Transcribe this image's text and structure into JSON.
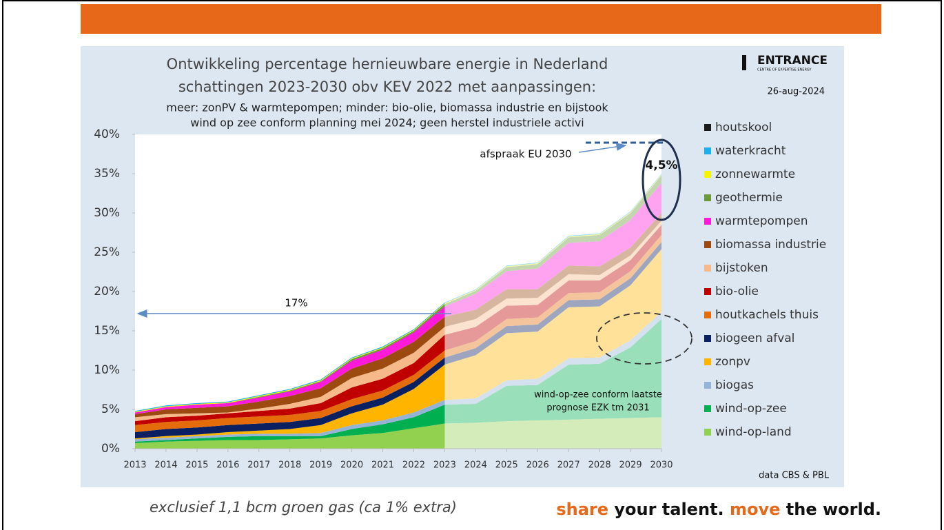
{
  "chart_data": {
    "type": "stacked_area",
    "title": [
      "Ontwikkeling percentage hernieuwbare energie in Nederland",
      "schattingen 2023-2030 obv KEV 2022 met aanpassingen:"
    ],
    "subtitle": [
      "meer: zonPV & warmtepompen; minder: bio-olie, biomassa industrie en bijstook",
      "wind op zee conform planning mei 2024; geen herstel industriele activi"
    ],
    "logo": "ENTRANCE",
    "logo_subtitle": "CENTRE OF EXPERTISE ENERGY",
    "date": "26-aug-2024",
    "source": "data CBS & PBL",
    "annotations": [
      "17%",
      "afspraak EU 2030",
      "4,5%",
      "wind-op-zee conform laatste",
      "prognose EZK tm 2031"
    ],
    "forecast_start": 2023,
    "x": [
      2013,
      2014,
      2015,
      2016,
      2017,
      2018,
      2019,
      2020,
      2021,
      2022,
      2023,
      2024,
      2025,
      2026,
      2027,
      2028,
      2029,
      2030
    ],
    "xlim": [
      2013,
      2030
    ],
    "xticks": [
      2013,
      2014,
      2015,
      2016,
      2017,
      2018,
      2019,
      2020,
      2021,
      2022,
      2023,
      2024,
      2025,
      2026,
      2027,
      2028,
      2029,
      2030
    ],
    "ylim": [
      0,
      40
    ],
    "yticks": [
      {
        "value": 0,
        "label": "0%"
      },
      {
        "value": 5,
        "label": "5%"
      },
      {
        "value": 10,
        "label": "10%"
      },
      {
        "value": 15,
        "label": "15%"
      },
      {
        "value": 20,
        "label": "20%"
      },
      {
        "value": 25,
        "label": "25%"
      },
      {
        "value": 30,
        "label": "30%"
      },
      {
        "value": 35,
        "label": "35%"
      },
      {
        "value": 40,
        "label": "40%"
      }
    ],
    "series": [
      {
        "name": "houtskool",
        "color": "#1a1a1a",
        "values": [
          0,
          0,
          0,
          0,
          0,
          0,
          0,
          0,
          0,
          0,
          0,
          0,
          0,
          0,
          0,
          0,
          0,
          0
        ]
      },
      {
        "name": "waterkracht",
        "color": "#1ab0e8",
        "values": [
          0.1,
          0.1,
          0.1,
          0.1,
          0.1,
          0.1,
          0.1,
          0.1,
          0.1,
          0.1,
          0.1,
          0.1,
          0.1,
          0.1,
          0.1,
          0.1,
          0.1,
          0.1
        ]
      },
      {
        "name": "zonnewarmte",
        "color": "#f5f500",
        "values": [
          0.1,
          0.1,
          0.1,
          0.1,
          0.1,
          0.1,
          0.1,
          0.1,
          0.1,
          0.1,
          0.1,
          0.1,
          0.1,
          0.1,
          0.1,
          0.1,
          0.1,
          0.1
        ]
      },
      {
        "name": "geothermie",
        "color": "#6a9a3a",
        "values": [
          0,
          0,
          0,
          0,
          0.1,
          0.1,
          0.1,
          0.2,
          0.2,
          0.2,
          0.3,
          0.4,
          0.5,
          0.6,
          0.7,
          0.8,
          0.9,
          1.0
        ]
      },
      {
        "name": "warmtepompen",
        "color": "#ff1ad9",
        "values": [
          0.2,
          0.3,
          0.4,
          0.4,
          0.5,
          0.6,
          0.8,
          1.0,
          1.1,
          1.2,
          1.3,
          2.0,
          2.3,
          2.6,
          2.9,
          3.2,
          3.5,
          3.8
        ]
      },
      {
        "name": "biomassa industrie",
        "color": "#9c4a10",
        "values": [
          0.4,
          0.6,
          0.7,
          0.8,
          0.9,
          1.0,
          1.1,
          1.2,
          1.3,
          1.4,
          1.3,
          1.2,
          1.2,
          1.1,
          1.1,
          1.1,
          1.0,
          1.0
        ]
      },
      {
        "name": "bijstoken",
        "color": "#f6b98a",
        "values": [
          0.5,
          0.4,
          0.3,
          0.1,
          0.3,
          0.6,
          0.8,
          1.2,
          1.3,
          1.3,
          1.0,
          1.0,
          0.9,
          0.9,
          0.8,
          0.7,
          0.6,
          0.5
        ]
      },
      {
        "name": "bio-olie",
        "color": "#c00000",
        "values": [
          0.5,
          0.6,
          0.6,
          0.6,
          0.7,
          0.8,
          1.0,
          1.5,
          1.5,
          1.5,
          2.0,
          1.8,
          1.7,
          1.6,
          1.6,
          1.5,
          1.4,
          1.3
        ]
      },
      {
        "name": "houtkachels thuis",
        "color": "#e46c0a",
        "values": [
          0.9,
          0.9,
          0.9,
          0.9,
          0.9,
          0.9,
          0.9,
          0.9,
          0.9,
          0.9,
          0.9,
          0.9,
          0.9,
          0.9,
          0.9,
          0.9,
          0.9,
          0.9
        ]
      },
      {
        "name": "biogeen afval",
        "color": "#0b2060",
        "values": [
          0.8,
          0.9,
          0.9,
          0.9,
          0.9,
          0.9,
          0.9,
          0.9,
          0.9,
          0.9,
          0.9,
          0.9,
          0.9,
          0.9,
          0.9,
          0.9,
          0.9,
          0.9
        ]
      },
      {
        "name": "zonpv",
        "color": "#ffb400",
        "values": [
          0.1,
          0.2,
          0.2,
          0.3,
          0.4,
          0.6,
          1.0,
          1.5,
          2.0,
          3.0,
          4.5,
          5.5,
          6.0,
          6.0,
          6.5,
          6.5,
          7.0,
          8.0
        ]
      },
      {
        "name": "biogas",
        "color": "#95b3d7",
        "values": [
          0.3,
          0.3,
          0.3,
          0.3,
          0.3,
          0.3,
          0.4,
          0.5,
          0.5,
          0.6,
          0.6,
          0.7,
          0.7,
          0.8,
          0.8,
          0.8,
          0.9,
          0.9
        ]
      },
      {
        "name": "wind-op-zee",
        "color": "#00b050",
        "values": [
          0.2,
          0.2,
          0.3,
          0.4,
          0.5,
          0.4,
          0.3,
          0.8,
          1.1,
          1.4,
          2.4,
          2.4,
          4.5,
          4.5,
          7.0,
          7.0,
          9.0,
          12.5
        ]
      },
      {
        "name": "wind-op-land",
        "color": "#92d050",
        "values": [
          0.7,
          0.9,
          1.0,
          1.1,
          1.1,
          1.2,
          1.3,
          1.7,
          2.0,
          2.6,
          3.2,
          3.3,
          3.5,
          3.6,
          3.7,
          3.8,
          3.9,
          4.0
        ]
      }
    ]
  },
  "footer": {
    "note": "exclusief 1,1 bcm groen gas (ca 1% extra)",
    "slogan": [
      "share",
      "your talent.",
      "move",
      "the world."
    ]
  }
}
